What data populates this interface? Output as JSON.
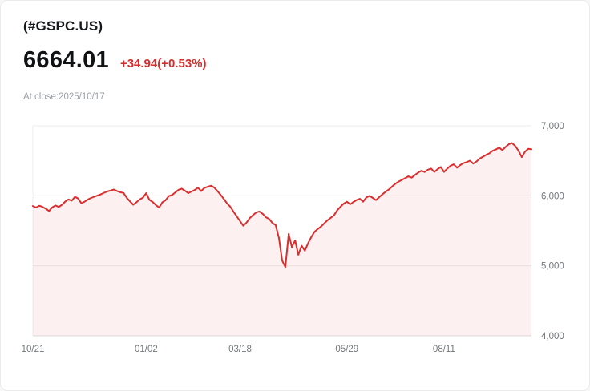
{
  "header": {
    "ticker": "(#GSPC.US)",
    "price": "6664.01",
    "change": "+34.94(+0.53%)",
    "close_label": "At close:2025/10/17"
  },
  "colors": {
    "change_color": "#d32f2f",
    "line_color": "#d92f2f",
    "fill_color": "rgba(217, 47, 47, 0.07)",
    "grid_color": "#ececec",
    "axis_color": "#dcdcdc"
  },
  "chart_data": {
    "type": "area",
    "title": "#GSPC.US price, 1 year",
    "xlabel": "",
    "ylabel": "",
    "ylim": [
      4000,
      7000
    ],
    "y_ticks": [
      4000,
      5000,
      6000,
      7000
    ],
    "y_tick_labels": [
      "4,000",
      "5,000",
      "6,000",
      "7,000"
    ],
    "x_tick_labels": [
      "10/21",
      "01/02",
      "03/18",
      "05/29",
      "08/11"
    ],
    "x_tick_indices": [
      0,
      35,
      64,
      97,
      127
    ],
    "legend": "none",
    "grid": "horizontal",
    "values": [
      5854,
      5832,
      5858,
      5841,
      5815,
      5783,
      5836,
      5862,
      5840,
      5872,
      5918,
      5949,
      5931,
      5984,
      5962,
      5893,
      5917,
      5948,
      5969,
      5987,
      6005,
      6021,
      6044,
      6062,
      6075,
      6090,
      6068,
      6051,
      6040,
      5972,
      5920,
      5872,
      5908,
      5948,
      5974,
      6038,
      5942,
      5912,
      5868,
      5832,
      5908,
      5937,
      5996,
      6012,
      6049,
      6086,
      6101,
      6071,
      6038,
      6061,
      6083,
      6115,
      6068,
      6114,
      6129,
      6144,
      6118,
      6068,
      6013,
      5954,
      5892,
      5842,
      5770,
      5704,
      5638,
      5572,
      5618,
      5682,
      5724,
      5762,
      5776,
      5742,
      5694,
      5668,
      5611,
      5581,
      5396,
      5074,
      4982,
      5456,
      5268,
      5363,
      5158,
      5287,
      5216,
      5321,
      5412,
      5486,
      5525,
      5561,
      5606,
      5650,
      5686,
      5721,
      5793,
      5844,
      5888,
      5916,
      5878,
      5912,
      5940,
      5958,
      5916,
      5976,
      5998,
      5970,
      5939,
      5982,
      6022,
      6059,
      6092,
      6134,
      6173,
      6204,
      6227,
      6252,
      6279,
      6259,
      6297,
      6331,
      6358,
      6339,
      6373,
      6389,
      6340,
      6381,
      6412,
      6340,
      6389,
      6429,
      6449,
      6401,
      6439,
      6466,
      6481,
      6502,
      6460,
      6488,
      6532,
      6558,
      6584,
      6606,
      6643,
      6661,
      6688,
      6652,
      6698,
      6735,
      6753,
      6712,
      6644,
      6552,
      6629,
      6671,
      6664.01
    ]
  }
}
